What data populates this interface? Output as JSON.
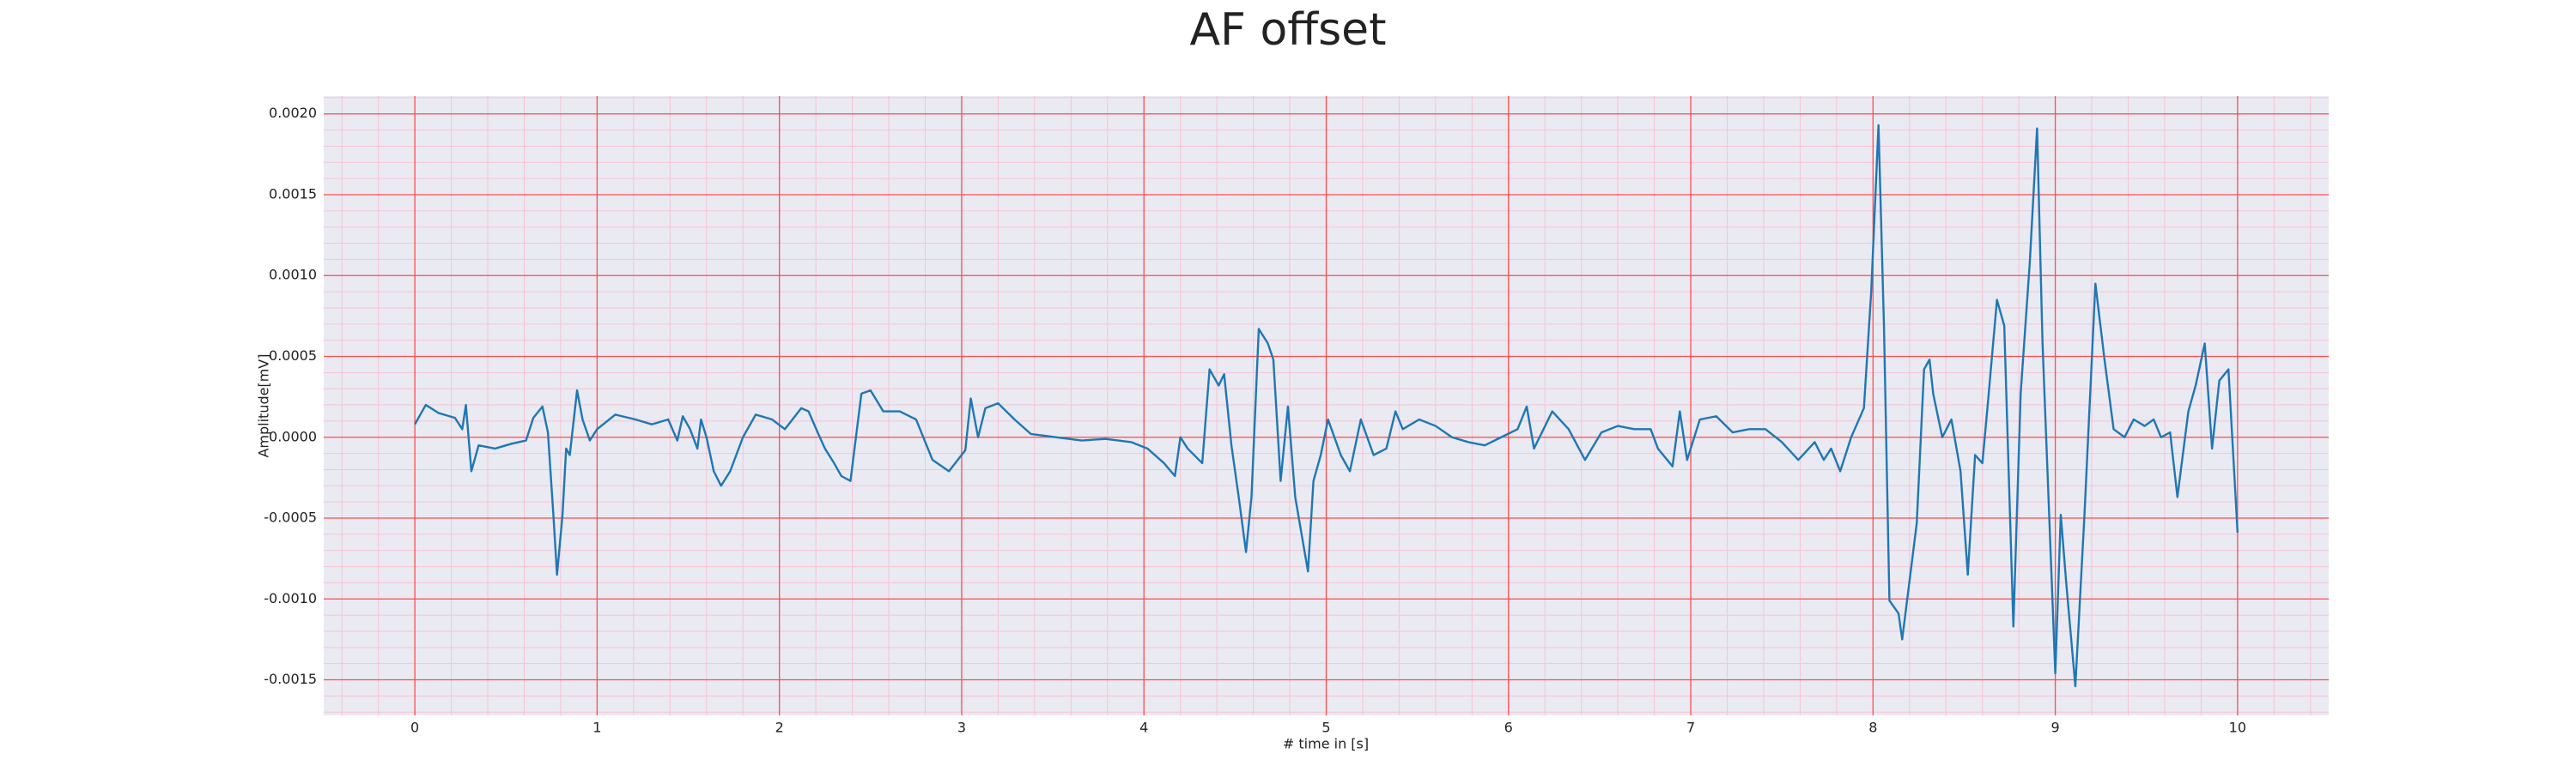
{
  "chart_data": {
    "type": "line",
    "title": "AF offset",
    "xlabel": "# time in [s]",
    "ylabel": "Amplitude[mV]",
    "xlim": [
      -0.5,
      10.5
    ],
    "ylim": [
      -0.00172,
      0.00211
    ],
    "xticks": [
      0,
      1,
      2,
      3,
      4,
      5,
      6,
      7,
      8,
      9,
      10
    ],
    "yticks": [
      {
        "value": -0.0015,
        "label": "-0.0015"
      },
      {
        "value": -0.001,
        "label": "-0.0010"
      },
      {
        "value": -0.0005,
        "label": "-0.0005"
      },
      {
        "value": 0,
        "label": "0.0000"
      },
      {
        "value": 0.0005,
        "label": "0.0005"
      },
      {
        "value": 0.001,
        "label": "0.0010"
      },
      {
        "value": 0.0015,
        "label": "0.0015"
      },
      {
        "value": 0.002,
        "label": "0.0020"
      }
    ],
    "grid": true,
    "grid_color": "#ff4d4d",
    "minor_grid": true,
    "minor_grid_color": "#f7c3d3",
    "series": [
      {
        "color": "#1f77b4",
        "x": [
          0.0,
          0.06,
          0.13,
          0.22,
          0.26,
          0.28,
          0.31,
          0.35,
          0.44,
          0.53,
          0.61,
          0.65,
          0.7,
          0.73,
          0.76,
          0.78,
          0.81,
          0.83,
          0.85,
          0.89,
          0.92,
          0.96,
          1.0,
          1.1,
          1.21,
          1.3,
          1.39,
          1.44,
          1.47,
          1.51,
          1.55,
          1.57,
          1.6,
          1.64,
          1.68,
          1.73,
          1.8,
          1.87,
          1.96,
          2.03,
          2.12,
          2.16,
          2.21,
          2.25,
          2.3,
          2.34,
          2.39,
          2.45,
          2.5,
          2.57,
          2.66,
          2.75,
          2.84,
          2.93,
          3.02,
          3.05,
          3.09,
          3.13,
          3.2,
          3.29,
          3.38,
          3.52,
          3.66,
          3.79,
          3.93,
          4.02,
          4.11,
          4.17,
          4.2,
          4.24,
          4.32,
          4.36,
          4.41,
          4.44,
          4.48,
          4.52,
          4.56,
          4.59,
          4.63,
          4.68,
          4.71,
          4.75,
          4.79,
          4.83,
          4.9,
          4.93,
          4.97,
          5.01,
          5.08,
          5.13,
          5.19,
          5.26,
          5.33,
          5.38,
          5.42,
          5.51,
          5.6,
          5.69,
          5.78,
          5.87,
          5.96,
          6.05,
          6.1,
          6.14,
          6.24,
          6.33,
          6.42,
          6.51,
          6.6,
          6.69,
          6.78,
          6.82,
          6.9,
          6.94,
          6.98,
          7.05,
          7.14,
          7.23,
          7.32,
          7.41,
          7.5,
          7.59,
          7.68,
          7.73,
          7.77,
          7.82,
          7.88,
          7.95,
          7.99,
          8.03,
          8.06,
          8.09,
          8.14,
          8.16,
          8.21,
          8.24,
          8.28,
          8.31,
          8.33,
          8.38,
          8.43,
          8.48,
          8.52,
          8.56,
          8.6,
          8.63,
          8.68,
          8.72,
          8.77,
          8.81,
          8.86,
          8.9,
          8.93,
          9.0,
          9.03,
          9.06,
          9.11,
          9.16,
          9.22,
          9.27,
          9.32,
          9.38,
          9.43,
          9.49,
          9.54,
          9.58,
          9.63,
          9.67,
          9.73,
          9.77,
          9.82,
          9.86,
          9.9,
          9.95,
          10.0
        ],
        "values": [
          8e-05,
          0.0002,
          0.00015,
          0.00012,
          5e-05,
          0.0002,
          -0.00021,
          -5e-05,
          -7e-05,
          -4e-05,
          -2e-05,
          0.00012,
          0.00019,
          3e-05,
          -0.00048,
          -0.00085,
          -0.00048,
          -7e-05,
          -0.00011,
          0.00029,
          0.00011,
          -2e-05,
          5e-05,
          0.00014,
          0.00011,
          8e-05,
          0.00011,
          -2e-05,
          0.00013,
          5e-05,
          -7e-05,
          0.00011,
          0,
          -0.00021,
          -0.0003,
          -0.00021,
          0,
          0.00014,
          0.00011,
          5e-05,
          0.00018,
          0.00016,
          3e-05,
          -7e-05,
          -0.00016,
          -0.00024,
          -0.00027,
          0.00027,
          0.00029,
          0.00016,
          0.00016,
          0.00011,
          -0.00014,
          -0.00021,
          -8e-05,
          0.00024,
          0,
          0.00018,
          0.00021,
          0.00011,
          2e-05,
          0,
          -2e-05,
          -1e-05,
          -3e-05,
          -7e-05,
          -0.00016,
          -0.00024,
          0,
          -7e-05,
          -0.00016,
          0.00042,
          0.00032,
          0.00039,
          -5e-05,
          -0.00037,
          -0.00071,
          -0.00037,
          0.00067,
          0.00058,
          0.00048,
          -0.00027,
          0.00019,
          -0.00037,
          -0.00083,
          -0.00027,
          -0.00011,
          0.00011,
          -0.00011,
          -0.00021,
          0.00011,
          -0.00011,
          -7e-05,
          0.00016,
          5e-05,
          0.00011,
          7e-05,
          0,
          -3e-05,
          -5e-05,
          0,
          5e-05,
          0.00019,
          -7e-05,
          0.00016,
          5e-05,
          -0.00014,
          3e-05,
          7e-05,
          5e-05,
          5e-05,
          -7e-05,
          -0.00018,
          0.00016,
          -0.00014,
          0.00011,
          0.00013,
          3e-05,
          5e-05,
          5e-05,
          -3e-05,
          -0.00014,
          -3e-05,
          -0.00014,
          -7e-05,
          -0.00021,
          0,
          0.00018,
          0.0009,
          0.00193,
          0.00069,
          -0.00101,
          -0.00109,
          -0.00125,
          -0.0008,
          -0.00053,
          0.00042,
          0.00048,
          0.00027,
          0,
          0.00011,
          -0.00021,
          -0.00085,
          -0.00011,
          -0.00016,
          0.00021,
          0.00085,
          0.00069,
          -0.00117,
          0.00027,
          0.00108,
          0.00191,
          0.00058,
          -0.00146,
          -0.00048,
          -0.0009,
          -0.00154,
          -0.00048,
          0.00095,
          0.00048,
          5e-05,
          0,
          0.00011,
          7e-05,
          0.00011,
          0,
          3e-05,
          -0.00037,
          0.00016,
          0.00032,
          0.00058,
          -7e-05,
          0.00035,
          0.00042,
          -0.00059
        ]
      }
    ]
  }
}
